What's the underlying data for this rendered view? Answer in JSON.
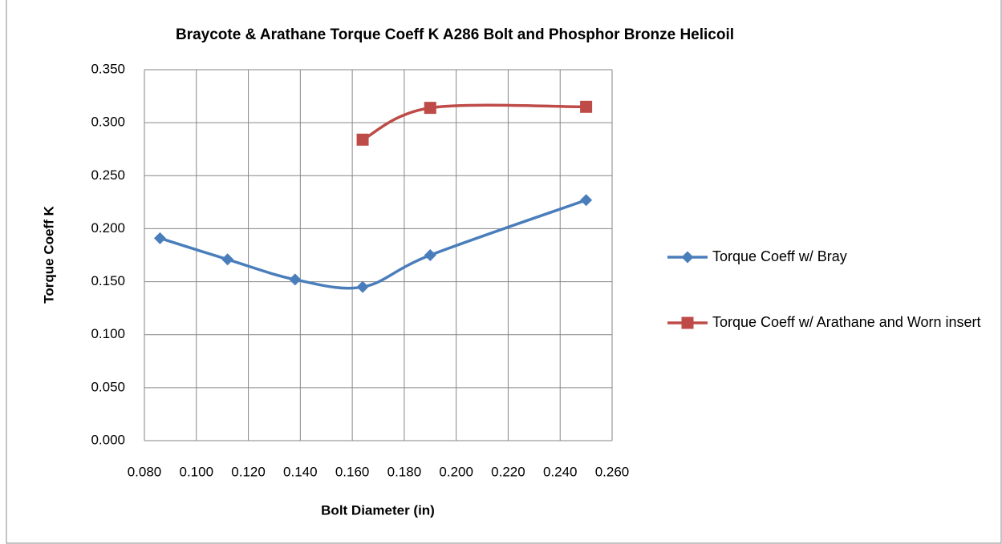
{
  "chart_data": {
    "type": "scatter",
    "title": "Braycote & Arathane Torque Coeff K A286 Bolt and Phosphor Bronze Helicoil",
    "x_label": "Bolt Diameter (in)",
    "y_label": "Torque Coeff K",
    "smooth": true,
    "grid": true,
    "legend": "right",
    "xlim": [
      0.08,
      0.26
    ],
    "ylim": [
      0,
      0.35
    ],
    "xticks": [
      {
        "value": 0.08,
        "label": "0.080"
      },
      {
        "value": 0.1,
        "label": "0.100"
      },
      {
        "value": 0.12,
        "label": "0.120"
      },
      {
        "value": 0.14,
        "label": "0.140"
      },
      {
        "value": 0.16,
        "label": "0.160"
      },
      {
        "value": 0.18,
        "label": "0.180"
      },
      {
        "value": 0.2,
        "label": "0.200"
      },
      {
        "value": 0.22,
        "label": "0.220"
      },
      {
        "value": 0.24,
        "label": "0.240"
      },
      {
        "value": 0.26,
        "label": "0.260"
      }
    ],
    "yticks": [
      {
        "value": 0,
        "label": "0.000"
      },
      {
        "value": 0.05,
        "label": "0.050"
      },
      {
        "value": 0.1,
        "label": "0.100"
      },
      {
        "value": 0.15,
        "label": "0.150"
      },
      {
        "value": 0.2,
        "label": "0.200"
      },
      {
        "value": 0.25,
        "label": "0.250"
      },
      {
        "value": 0.3,
        "label": "0.300"
      },
      {
        "value": 0.35,
        "label": "0.350"
      }
    ],
    "series": [
      {
        "name": "Torque Coeff w/ Bray",
        "color": "#4a7ebb",
        "marker": "diamond",
        "x": [
          0.086,
          0.112,
          0.138,
          0.164,
          0.19,
          0.25
        ],
        "values": [
          0.191,
          0.171,
          0.152,
          0.145,
          0.175,
          0.227
        ]
      },
      {
        "name": "Torque Coeff w/ Arathane and Worn insert",
        "color": "#be4b48",
        "marker": "square",
        "x": [
          0.164,
          0.19,
          0.25
        ],
        "values": [
          0.284,
          0.314,
          0.315
        ]
      }
    ]
  }
}
